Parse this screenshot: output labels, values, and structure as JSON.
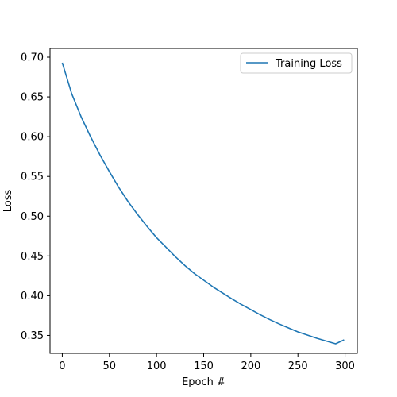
{
  "chart_data": {
    "type": "line",
    "title": "",
    "xlabel": "Epoch #",
    "ylabel": "Loss",
    "xlim": [
      -13,
      313
    ],
    "ylim": [
      0.3275,
      0.711
    ],
    "xticks": [
      0,
      50,
      100,
      150,
      200,
      250,
      300
    ],
    "xtick_labels": [
      "0",
      "50",
      "100",
      "150",
      "200",
      "250",
      "300"
    ],
    "yticks": [
      0.35,
      0.4,
      0.45,
      0.5,
      0.55,
      0.6,
      0.65,
      0.7
    ],
    "ytick_labels": [
      "0.35",
      "0.40",
      "0.45",
      "0.50",
      "0.55",
      "0.60",
      "0.65",
      "0.70"
    ],
    "grid": false,
    "legend_position": "upper right",
    "series": [
      {
        "name": "Training Loss",
        "color": "#1f77b4",
        "x": [
          0,
          10,
          20,
          30,
          40,
          50,
          60,
          70,
          80,
          90,
          100,
          110,
          120,
          130,
          140,
          150,
          160,
          170,
          180,
          190,
          200,
          210,
          220,
          230,
          240,
          250,
          260,
          270,
          280,
          290,
          299
        ],
        "y": [
          0.693,
          0.654,
          0.625,
          0.6,
          0.577,
          0.556,
          0.536,
          0.518,
          0.502,
          0.487,
          0.473,
          0.461,
          0.449,
          0.438,
          0.428,
          0.4195,
          0.411,
          0.4035,
          0.396,
          0.389,
          0.3825,
          0.376,
          0.37,
          0.3645,
          0.3595,
          0.3545,
          0.3505,
          0.3465,
          0.343,
          0.3395,
          0.3445
        ]
      }
    ]
  }
}
